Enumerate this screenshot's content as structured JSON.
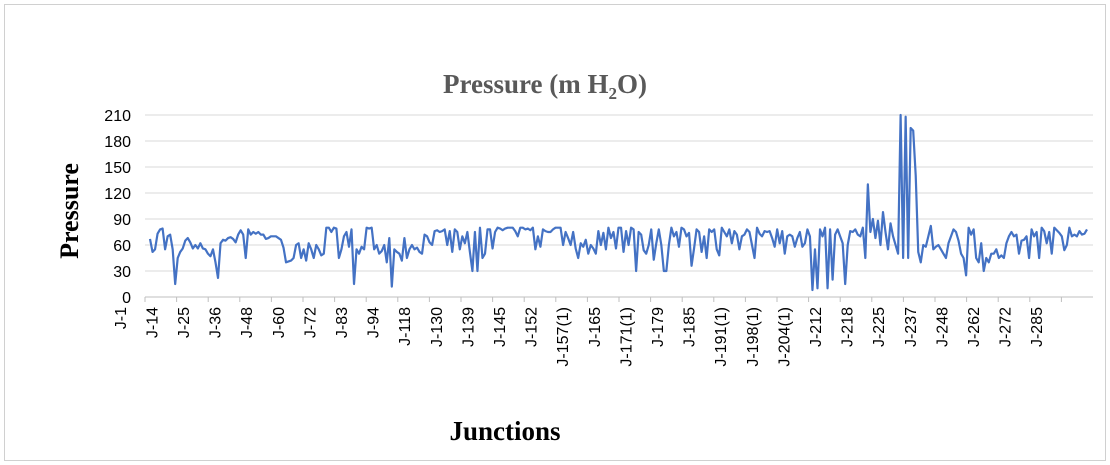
{
  "chart_data": {
    "type": "line",
    "title": "Pressure (m H2O)",
    "title_main": "Pressure (m H",
    "title_sub": "2",
    "title_end": "O)",
    "xlabel": "Junctions",
    "ylabel": "Pressure",
    "ylim": [
      0,
      210
    ],
    "yticks": [
      0,
      30,
      60,
      90,
      120,
      150,
      180,
      210
    ],
    "grid": true,
    "legend": "none",
    "series_color": "#4472c4",
    "tick_labels": [
      "J-1",
      "J-14",
      "J-25",
      "J-36",
      "J-48",
      "J-60",
      "J-72",
      "J-83",
      "J-94",
      "J-118",
      "J-130",
      "J-139",
      "J-145",
      "J-152",
      "J-157(1)",
      "J-165",
      "J-171(1)",
      "J-179",
      "J-185",
      "J-191(1)",
      "J-198(1)",
      "J-204(1)",
      "J-212",
      "J-218",
      "J-225",
      "J-237",
      "J-248",
      "J-262",
      "J-272",
      "J-285"
    ],
    "series": [
      {
        "values": [
          67,
          52,
          55,
          73,
          78,
          79,
          55,
          70,
          72,
          55,
          15,
          45,
          52,
          56,
          65,
          68,
          63,
          56,
          60,
          56,
          62,
          56,
          55,
          50,
          47,
          55,
          40,
          22,
          62,
          66,
          65,
          68,
          69,
          67,
          63,
          72,
          77,
          72,
          45,
          78,
          72,
          75,
          73,
          75,
          72,
          72,
          67,
          68,
          70,
          70,
          70,
          68,
          66,
          57,
          40,
          41,
          42,
          45,
          60,
          62,
          45,
          55,
          42,
          62,
          55,
          45,
          60,
          55,
          48,
          50,
          80,
          80,
          75,
          80,
          79,
          45,
          55,
          70,
          75,
          58,
          78,
          15,
          55,
          50,
          58,
          55,
          80,
          79,
          80,
          55,
          60,
          50,
          53,
          60,
          40,
          68,
          12,
          55,
          52,
          50,
          42,
          68,
          45,
          55,
          60,
          55,
          57,
          52,
          50,
          72,
          70,
          63,
          60,
          76,
          77,
          75,
          76,
          78,
          60,
          76,
          52,
          78,
          75,
          55,
          70,
          62,
          75,
          52,
          30,
          75,
          30,
          80,
          45,
          50,
          78,
          78,
          56,
          75,
          80,
          79,
          77,
          79,
          80,
          80,
          80,
          76,
          70,
          80,
          80,
          78,
          79,
          77,
          80,
          55,
          70,
          58,
          78,
          76,
          75,
          75,
          78,
          80,
          80,
          80,
          60,
          75,
          68,
          60,
          75,
          56,
          45,
          62,
          58,
          66,
          50,
          60,
          56,
          50,
          76,
          60,
          74,
          55,
          80,
          68,
          75,
          56,
          80,
          80,
          52,
          76,
          60,
          80,
          78,
          30,
          75,
          72,
          54,
          50,
          60,
          78,
          43,
          62,
          78,
          60,
          30,
          30,
          60,
          80,
          70,
          75,
          58,
          80,
          78,
          70,
          74,
          36,
          56,
          78,
          75,
          52,
          70,
          45,
          78,
          75,
          78,
          55,
          48,
          80,
          75,
          70,
          78,
          62,
          76,
          72,
          55,
          70,
          72,
          78,
          75,
          60,
          45,
          80,
          73,
          70,
          76,
          75,
          76,
          68,
          58,
          78,
          62,
          76,
          50,
          70,
          72,
          70,
          58,
          68,
          75,
          58,
          62,
          78,
          70,
          8,
          55,
          10,
          78,
          70,
          80,
          10,
          78,
          20,
          72,
          78,
          70,
          62,
          15,
          60,
          76,
          75,
          78,
          72,
          70,
          80,
          45,
          130,
          75,
          90,
          68,
          88,
          60,
          98,
          75,
          55,
          85,
          70,
          60,
          50,
          210,
          45,
          208,
          45,
          195,
          192,
          140,
          52,
          40,
          60,
          58,
          70,
          82,
          55,
          58,
          60,
          55,
          50,
          45,
          62,
          70,
          78,
          75,
          65,
          50,
          45,
          25,
          80,
          72,
          78,
          45,
          40,
          62,
          30,
          45,
          40,
          50,
          50,
          55,
          45,
          48,
          45,
          62,
          70,
          75,
          70,
          72,
          50,
          65,
          66,
          70,
          45,
          78,
          70,
          75,
          45,
          80,
          76,
          62,
          75,
          50,
          80,
          77,
          74,
          70,
          54,
          60,
          80,
          70,
          72,
          70,
          76,
          72,
          73,
          78
        ]
      }
    ]
  }
}
